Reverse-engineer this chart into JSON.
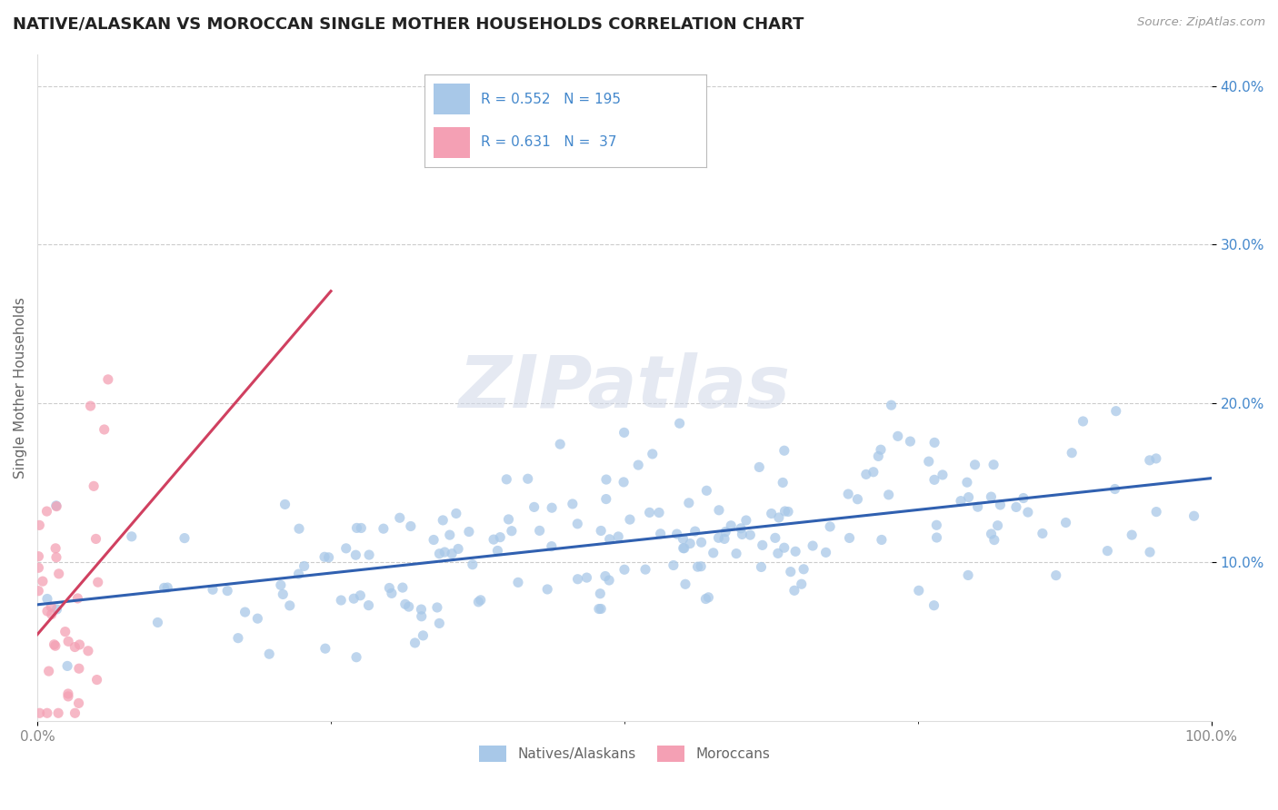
{
  "title": "NATIVE/ALASKAN VS MOROCCAN SINGLE MOTHER HOUSEHOLDS CORRELATION CHART",
  "source_text": "Source: ZipAtlas.com",
  "ylabel": "Single Mother Households",
  "xlim": [
    0,
    1.0
  ],
  "ylim": [
    0,
    0.42
  ],
  "watermark": "ZIPatlas",
  "legend_r1": "0.552",
  "legend_n1": "195",
  "legend_r2": "0.631",
  "legend_n2": " 37",
  "legend_label1": "Natives/Alaskans",
  "legend_label2": "Moroccans",
  "native_color": "#a8c8e8",
  "moroccan_color": "#f4a0b4",
  "native_line_color": "#3060b0",
  "moroccan_line_color": "#d04060",
  "background_color": "#ffffff",
  "grid_color": "#cccccc",
  "title_color": "#222222",
  "axis_label_color": "#4488cc",
  "tick_color": "#888888",
  "R_native": 0.552,
  "N_native": 195,
  "R_moroccan": 0.631,
  "N_moroccan": 37,
  "native_seed": 42,
  "moroccan_seed": 7
}
